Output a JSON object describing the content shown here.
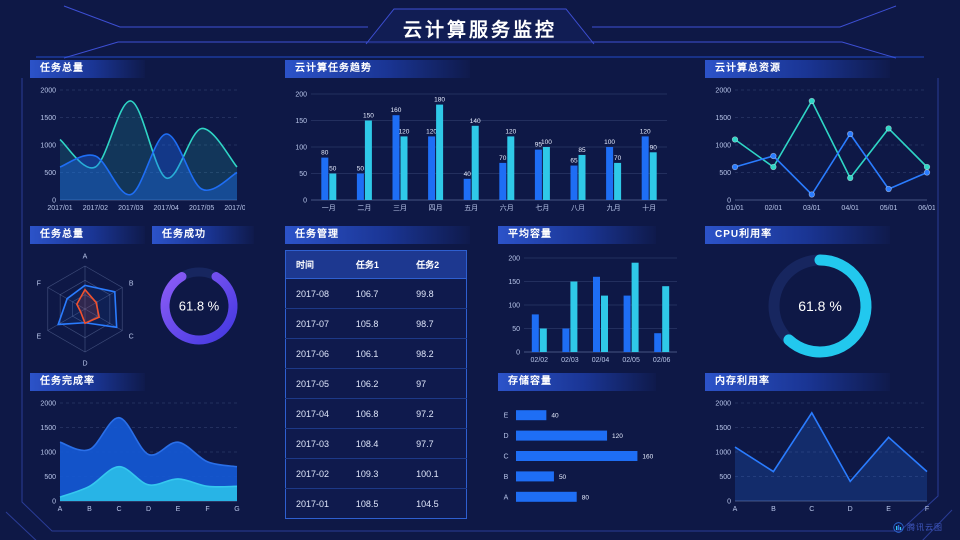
{
  "header": {
    "title": "云计算服务监控"
  },
  "footer": {
    "watermark": "腾讯云图"
  },
  "colors": {
    "background": "#0e1846",
    "accent_blue": "#1e6ef5",
    "accent_cyan": "#2fc9e8",
    "accent_teal": "#2fd6c6",
    "accent_purple": "#8b5cf6",
    "accent_red": "#f0512e",
    "frame_line": "#2a3c96",
    "header_gradient_from": "#2c53c9"
  },
  "panels": {
    "p1": {
      "title": "任务总量"
    },
    "p2": {
      "title": "云计算任务趋势"
    },
    "p3": {
      "title": "云计算总资源"
    },
    "p4": {
      "title": "任务总量"
    },
    "p5": {
      "title": "任务成功"
    },
    "p6": {
      "title": "任务管理"
    },
    "p7": {
      "title": "平均容量"
    },
    "p8": {
      "title": "CPU利用率"
    },
    "p9": {
      "title": "任务完成率"
    },
    "p10": {
      "title": "存储容量"
    },
    "p11": {
      "title": "内存利用率"
    }
  },
  "chart_data": [
    {
      "id": "task-total-area",
      "type": "area",
      "title": "任务总量",
      "x": [
        "2017/01",
        "2017/02",
        "2017/03",
        "2017/04",
        "2017/05",
        "2017/06"
      ],
      "ylim": [
        0,
        2000
      ],
      "yticks": [
        0,
        500,
        1000,
        1500,
        2000
      ],
      "smooth": true,
      "grid": "dashed",
      "series": [
        {
          "name": "teal",
          "color": "#2fd6c6",
          "fill": "rgba(46,214,198,0.16)",
          "values": [
            1100,
            600,
            1800,
            400,
            1300,
            600
          ]
        },
        {
          "name": "blue",
          "color": "#1e6ef5",
          "fill": "rgba(30,110,245,0.38)",
          "values": [
            600,
            800,
            100,
            1200,
            200,
            500
          ]
        }
      ]
    },
    {
      "id": "task-trend-bar",
      "type": "bar",
      "title": "云计算任务趋势",
      "categories": [
        "一月",
        "二月",
        "三月",
        "四月",
        "五月",
        "六月",
        "七月",
        "八月",
        "九月",
        "十月"
      ],
      "ylim": [
        0,
        200
      ],
      "yticks": [
        0,
        50,
        100,
        150,
        200
      ],
      "value_labels": true,
      "grid": "solid",
      "series": [
        {
          "name": "任务1",
          "color": "#1e6ef5",
          "values": [
            80,
            50,
            160,
            120,
            40,
            70,
            95,
            65,
            100,
            120
          ]
        },
        {
          "name": "任务2",
          "color": "#2fc9e8",
          "values": [
            50,
            150,
            120,
            180,
            140,
            120,
            100,
            85,
            70,
            90
          ]
        }
      ]
    },
    {
      "id": "cloud-resource-line",
      "type": "line",
      "title": "云计算总资源",
      "x": [
        "01/01",
        "02/01",
        "03/01",
        "04/01",
        "05/01",
        "06/01"
      ],
      "ylim": [
        0,
        2000
      ],
      "yticks": [
        0,
        500,
        1000,
        1500,
        2000
      ],
      "markers": true,
      "grid": "dashed",
      "series": [
        {
          "name": "teal",
          "color": "#2fd6c6",
          "values": [
            1100,
            600,
            1800,
            400,
            1300,
            600
          ]
        },
        {
          "name": "blue",
          "color": "#2a7cff",
          "values": [
            600,
            800,
            100,
            1200,
            200,
            500
          ]
        }
      ]
    },
    {
      "id": "task-radar",
      "type": "radar",
      "title": "任务总量",
      "axes": [
        "A",
        "B",
        "C",
        "D",
        "E",
        "F"
      ],
      "max": 100,
      "series": [
        {
          "name": "blue",
          "color": "#2a7cff",
          "fill": "rgba(42,124,255,0.08)",
          "values": [
            55,
            80,
            85,
            32,
            72,
            48
          ]
        },
        {
          "name": "red",
          "color": "#f0512e",
          "fill": "rgba(240,81,46,0.15)",
          "values": [
            45,
            30,
            38,
            33,
            12,
            22
          ]
        }
      ]
    },
    {
      "id": "task-success-donut",
      "type": "donut",
      "title": "任务成功",
      "value": 61.8,
      "label": "61.8 %",
      "color_from": "#8b5cf6",
      "color_to": "#4338e0",
      "arc": {
        "start": 30,
        "sweep": 300
      }
    },
    {
      "id": "task-table",
      "type": "table",
      "title": "任务管理",
      "headers": [
        "时间",
        "任务1",
        "任务2"
      ],
      "rows": [
        [
          "2017-08",
          "106.7",
          "99.8"
        ],
        [
          "2017-07",
          "105.8",
          "98.7"
        ],
        [
          "2017-06",
          "106.1",
          "98.2"
        ],
        [
          "2017-05",
          "106.2",
          "97"
        ],
        [
          "2017-04",
          "106.8",
          "97.2"
        ],
        [
          "2017-03",
          "108.4",
          "97.7"
        ],
        [
          "2017-02",
          "109.3",
          "100.1"
        ],
        [
          "2017-01",
          "108.5",
          "104.5"
        ]
      ]
    },
    {
      "id": "avg-capacity-bar",
      "type": "bar",
      "title": "平均容量",
      "categories": [
        "02/02",
        "02/03",
        "02/04",
        "02/05",
        "02/06"
      ],
      "ylim": [
        0,
        200
      ],
      "yticks": [
        0,
        50,
        100,
        150,
        200
      ],
      "value_labels": false,
      "grid": "solid",
      "series": [
        {
          "name": "blue",
          "color": "#1e6ef5",
          "values": [
            80,
            50,
            160,
            120,
            40
          ]
        },
        {
          "name": "cyan",
          "color": "#2fc9e8",
          "values": [
            50,
            150,
            120,
            190,
            140
          ]
        }
      ]
    },
    {
      "id": "cpu-donut",
      "type": "donut",
      "title": "CPU利用率",
      "value": 61.8,
      "label": "61.8 %",
      "color_from": "#22c8ee",
      "color_to": "#22c8ee",
      "arc": {
        "start": 0,
        "sweep": 222.5
      }
    },
    {
      "id": "completion-area",
      "type": "area",
      "title": "任务完成率",
      "x": [
        "A",
        "B",
        "C",
        "D",
        "E",
        "F",
        "G"
      ],
      "ylim": [
        0,
        2000
      ],
      "yticks": [
        0,
        500,
        1000,
        1500,
        2000
      ],
      "smooth": true,
      "grid": "dashed",
      "series": [
        {
          "name": "blue",
          "color": "#2a6fe8",
          "fill": "rgba(20,90,215,0.9)",
          "values": [
            1200,
            1050,
            1700,
            950,
            1200,
            800,
            700
          ]
        },
        {
          "name": "cyan",
          "color": "#35c8ef",
          "fill": "rgba(41,185,232,0.95)",
          "values": [
            80,
            300,
            700,
            330,
            450,
            300,
            300
          ]
        }
      ]
    },
    {
      "id": "storage-hbar",
      "type": "hbar",
      "title": "存储容量",
      "categories": [
        "E",
        "D",
        "C",
        "B",
        "A"
      ],
      "values": [
        40,
        120,
        160,
        50,
        80
      ],
      "xmax": 170,
      "color": "#1e6ef5"
    },
    {
      "id": "memory-line",
      "type": "area",
      "title": "内存利用率",
      "x": [
        "A",
        "B",
        "C",
        "D",
        "E",
        "F"
      ],
      "ylim": [
        0,
        2000
      ],
      "yticks": [
        0,
        500,
        1000,
        1500,
        2000
      ],
      "smooth": false,
      "grid": "dashed",
      "series": [
        {
          "name": "blue",
          "color": "#2a7cff",
          "fill": "rgba(42,124,255,0.2)",
          "values": [
            1100,
            600,
            1800,
            400,
            1300,
            600
          ]
        }
      ]
    }
  ]
}
